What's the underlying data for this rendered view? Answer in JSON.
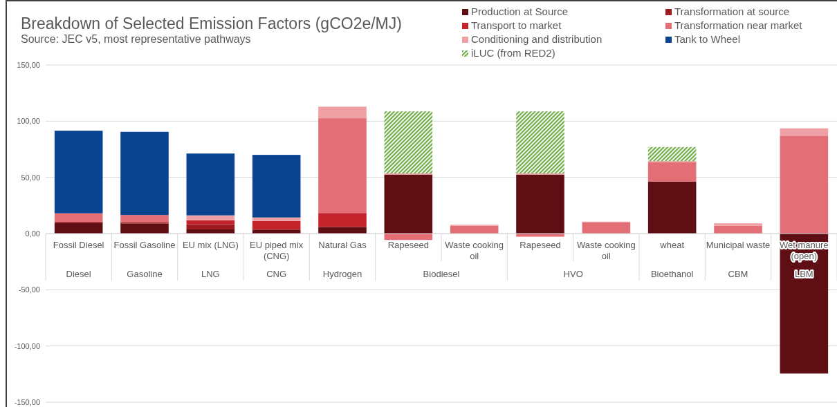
{
  "chart_data": {
    "type": "bar",
    "stacked": true,
    "title": "Breakdown of Selected Emission Factors (gCO2e/MJ)",
    "subtitle": "Source: JEC v5, most representative pathways",
    "categories": [
      "Fossil Diesel",
      "Fossil Gasoline",
      "EU mix (LNG)",
      "EU piped mix (CNG)",
      "Natural Gas",
      "Rapeseed",
      "Waste cooking oil",
      "Rapeseed",
      "Waste cooking oil",
      "wheat",
      "Municipal waste",
      "Wet manure (open)"
    ],
    "annotations": [
      "Diesel",
      "Gasoline",
      "LNG",
      "CNG",
      "Hydrogen",
      "Biodiesel",
      "HVO",
      "Bioethanol",
      "CBM",
      "LBM"
    ],
    "series": [
      {
        "name": "Production at Source",
        "color": "#5f0f14",
        "values": [
          9.5,
          9,
          3.7,
          3.5,
          5.9,
          52.5,
          0,
          52.5,
          0,
          46.2,
          0,
          -124.5
        ]
      },
      {
        "name": "Transformation at source",
        "color": "#9b1b20",
        "values": [
          1,
          1,
          4.5,
          0,
          0,
          0,
          0,
          0,
          0,
          0,
          0,
          0
        ]
      },
      {
        "name": "Transport to market",
        "color": "#c5232b",
        "values": [
          0,
          0,
          3.5,
          7.7,
          12.4,
          0,
          0,
          0,
          0,
          0,
          0,
          0
        ]
      },
      {
        "name": "Transformation near market",
        "color": "#e46e75",
        "values": [
          7.5,
          6.5,
          0,
          0,
          84.3,
          -5.7,
          7,
          -2.8,
          10,
          17.3,
          6.9,
          87.1
        ]
      },
      {
        "name": "Conditioning and distribution",
        "color": "#eea0a4",
        "values": [
          0,
          0,
          4.5,
          3.1,
          10.3,
          1,
          0.8,
          1,
          0.6,
          1,
          2.2,
          6.5
        ]
      },
      {
        "name": "Tank to Wheel",
        "color": "#0a4490",
        "values": [
          73.5,
          74,
          55,
          55.7,
          0,
          0,
          0,
          0,
          0,
          0,
          0,
          0
        ]
      },
      {
        "name": "iLUC (from RED2)",
        "color": "#70ad47",
        "values": [
          0,
          0,
          0,
          0,
          0,
          55.2,
          0,
          55.2,
          0,
          12.5,
          0,
          0
        ]
      }
    ],
    "ylim": [
      -150,
      150
    ],
    "yticks": [
      {
        "value": -150,
        "label": "-150,00"
      },
      {
        "value": -100,
        "label": "-100,00"
      },
      {
        "value": -50,
        "label": "-50,00"
      },
      {
        "value": 0,
        "label": "0,00"
      },
      {
        "value": 50,
        "label": "50,00"
      },
      {
        "value": 100,
        "label": "100,00"
      },
      {
        "value": 150,
        "label": "150,00"
      }
    ],
    "grid": "y",
    "legend": "top right"
  }
}
